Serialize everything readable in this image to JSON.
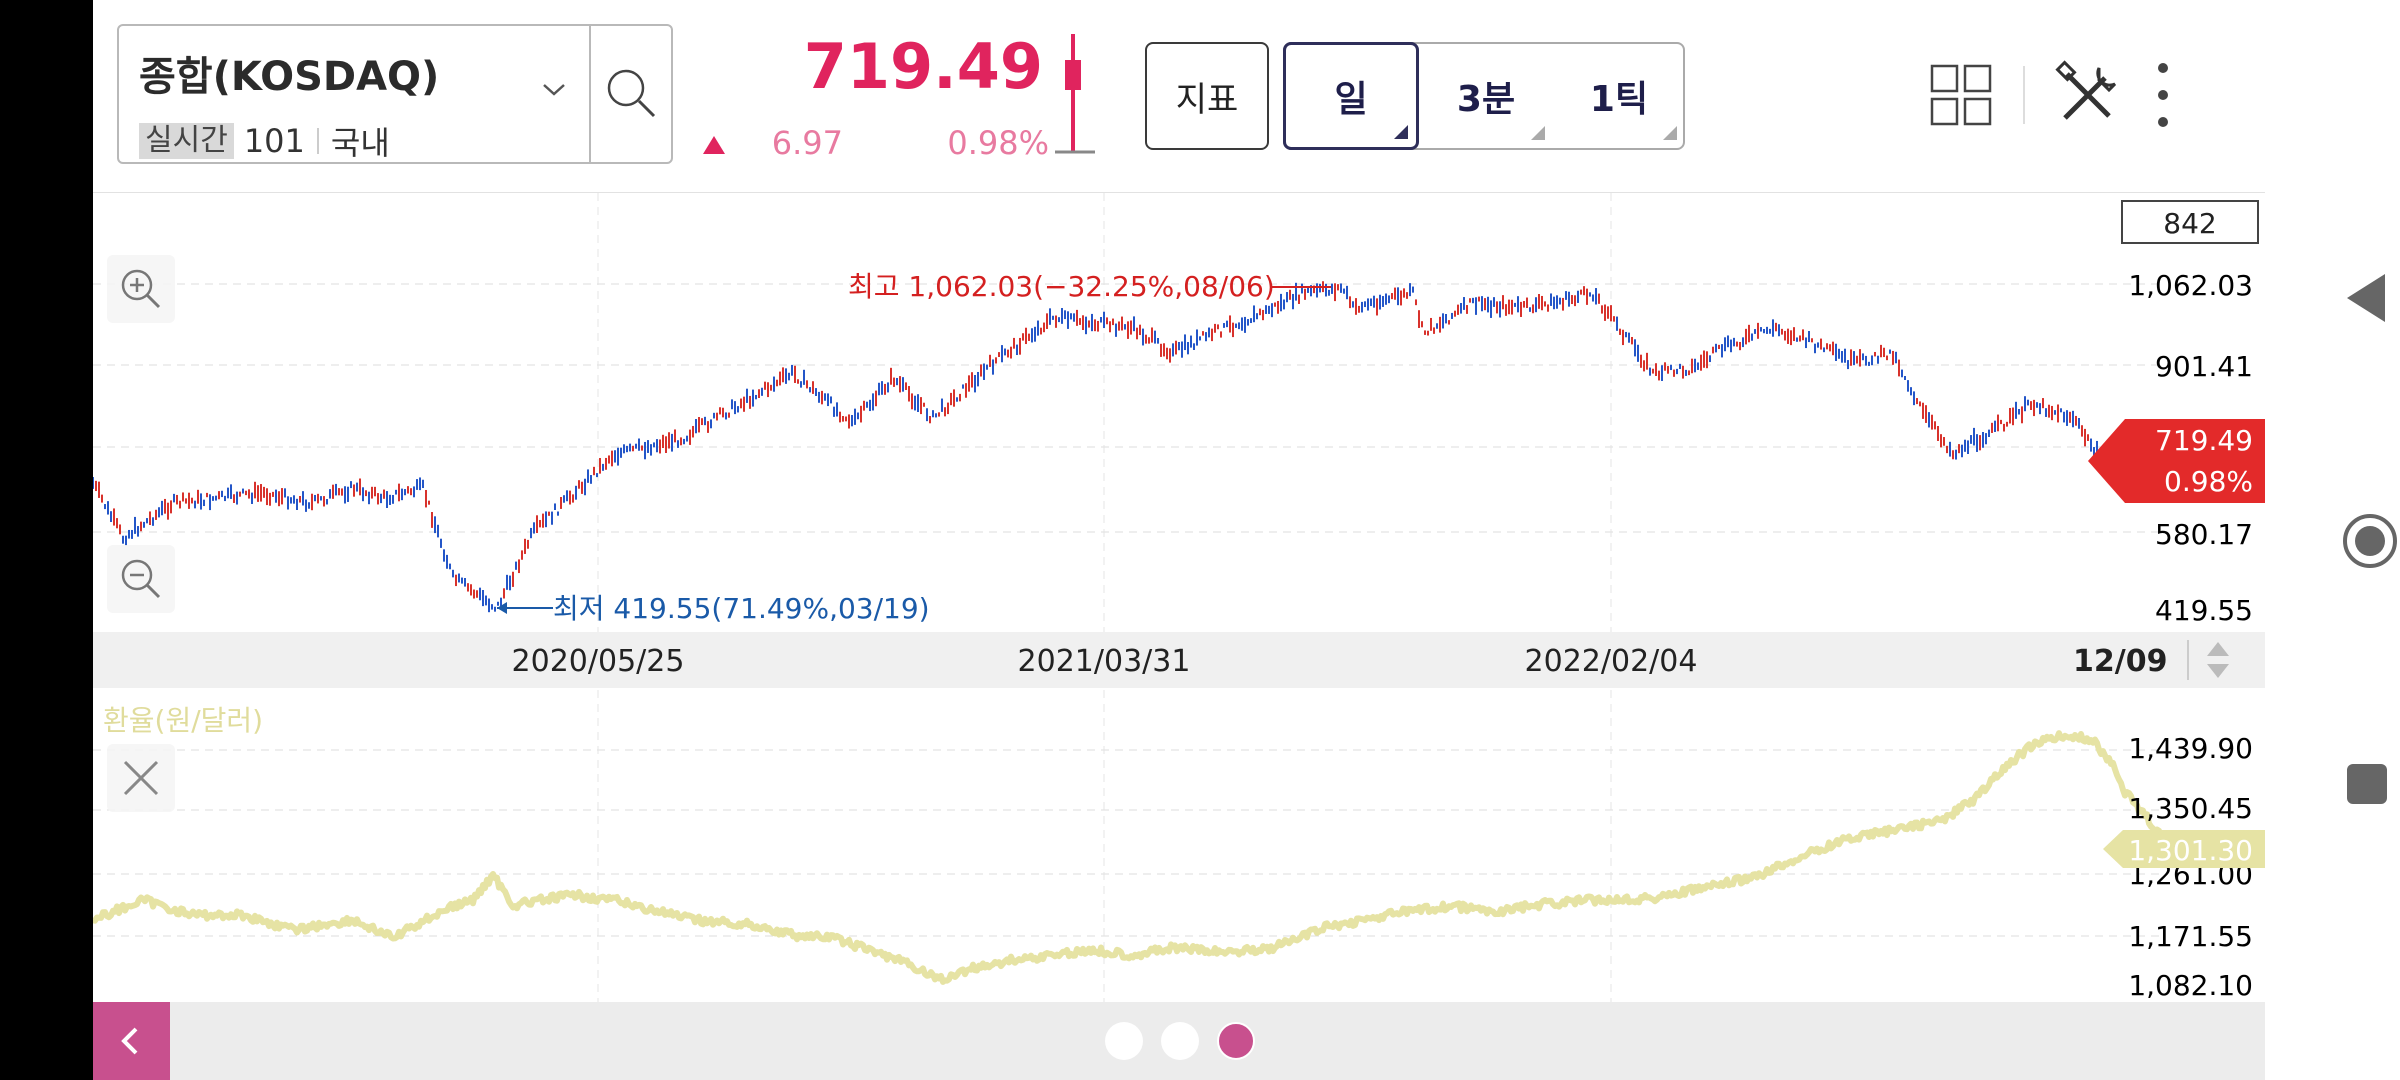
{
  "header": {
    "symbol_name": "종합(KOSDAQ)",
    "realtime_tag": "실시간",
    "code": "101",
    "market": "국내",
    "price": "719.49",
    "change": "6.97",
    "change_rate": "0.98%",
    "indicator_label": "지표",
    "periods": [
      "일",
      "3분",
      "1틱"
    ],
    "active_period": "일"
  },
  "main_chart": {
    "count_box": "842",
    "y_ticks": [
      "1,062.03",
      "901.41",
      "580.17",
      "419.55"
    ],
    "current_price": "719.49",
    "current_rate": "0.98%",
    "high_annotation": "최고 1,062.03(−32.25%,08/06)",
    "low_annotation": "최저 419.55(71.49%,03/19)"
  },
  "date_axis": {
    "labels": [
      "2020/05/25",
      "2021/03/31",
      "2022/02/04"
    ],
    "last": "12/09"
  },
  "sub_chart": {
    "title": "환율(원/달러)",
    "y_ticks": [
      "1,439.90",
      "1,350.45",
      "1,261.00",
      "1,171.55",
      "1,082.10"
    ],
    "current_value": "1,301.30"
  },
  "colors": {
    "up": "#e0245e",
    "candle_up": "#d8322c",
    "candle_down": "#2456c8",
    "high_label": "#d42020",
    "low_label": "#1a5aa8",
    "fx_line": "#e6e3a4",
    "accent": "#c8508e"
  },
  "icons": [
    "chevron-down-icon",
    "search-icon",
    "layout-grid-icon",
    "tools-icon",
    "more-vertical-icon",
    "zoom-in-icon",
    "zoom-out-icon",
    "close-icon",
    "back-icon",
    "nav-back-icon",
    "nav-home-icon",
    "nav-recents-icon"
  ],
  "pager": {
    "count": 3,
    "active": 2
  }
}
